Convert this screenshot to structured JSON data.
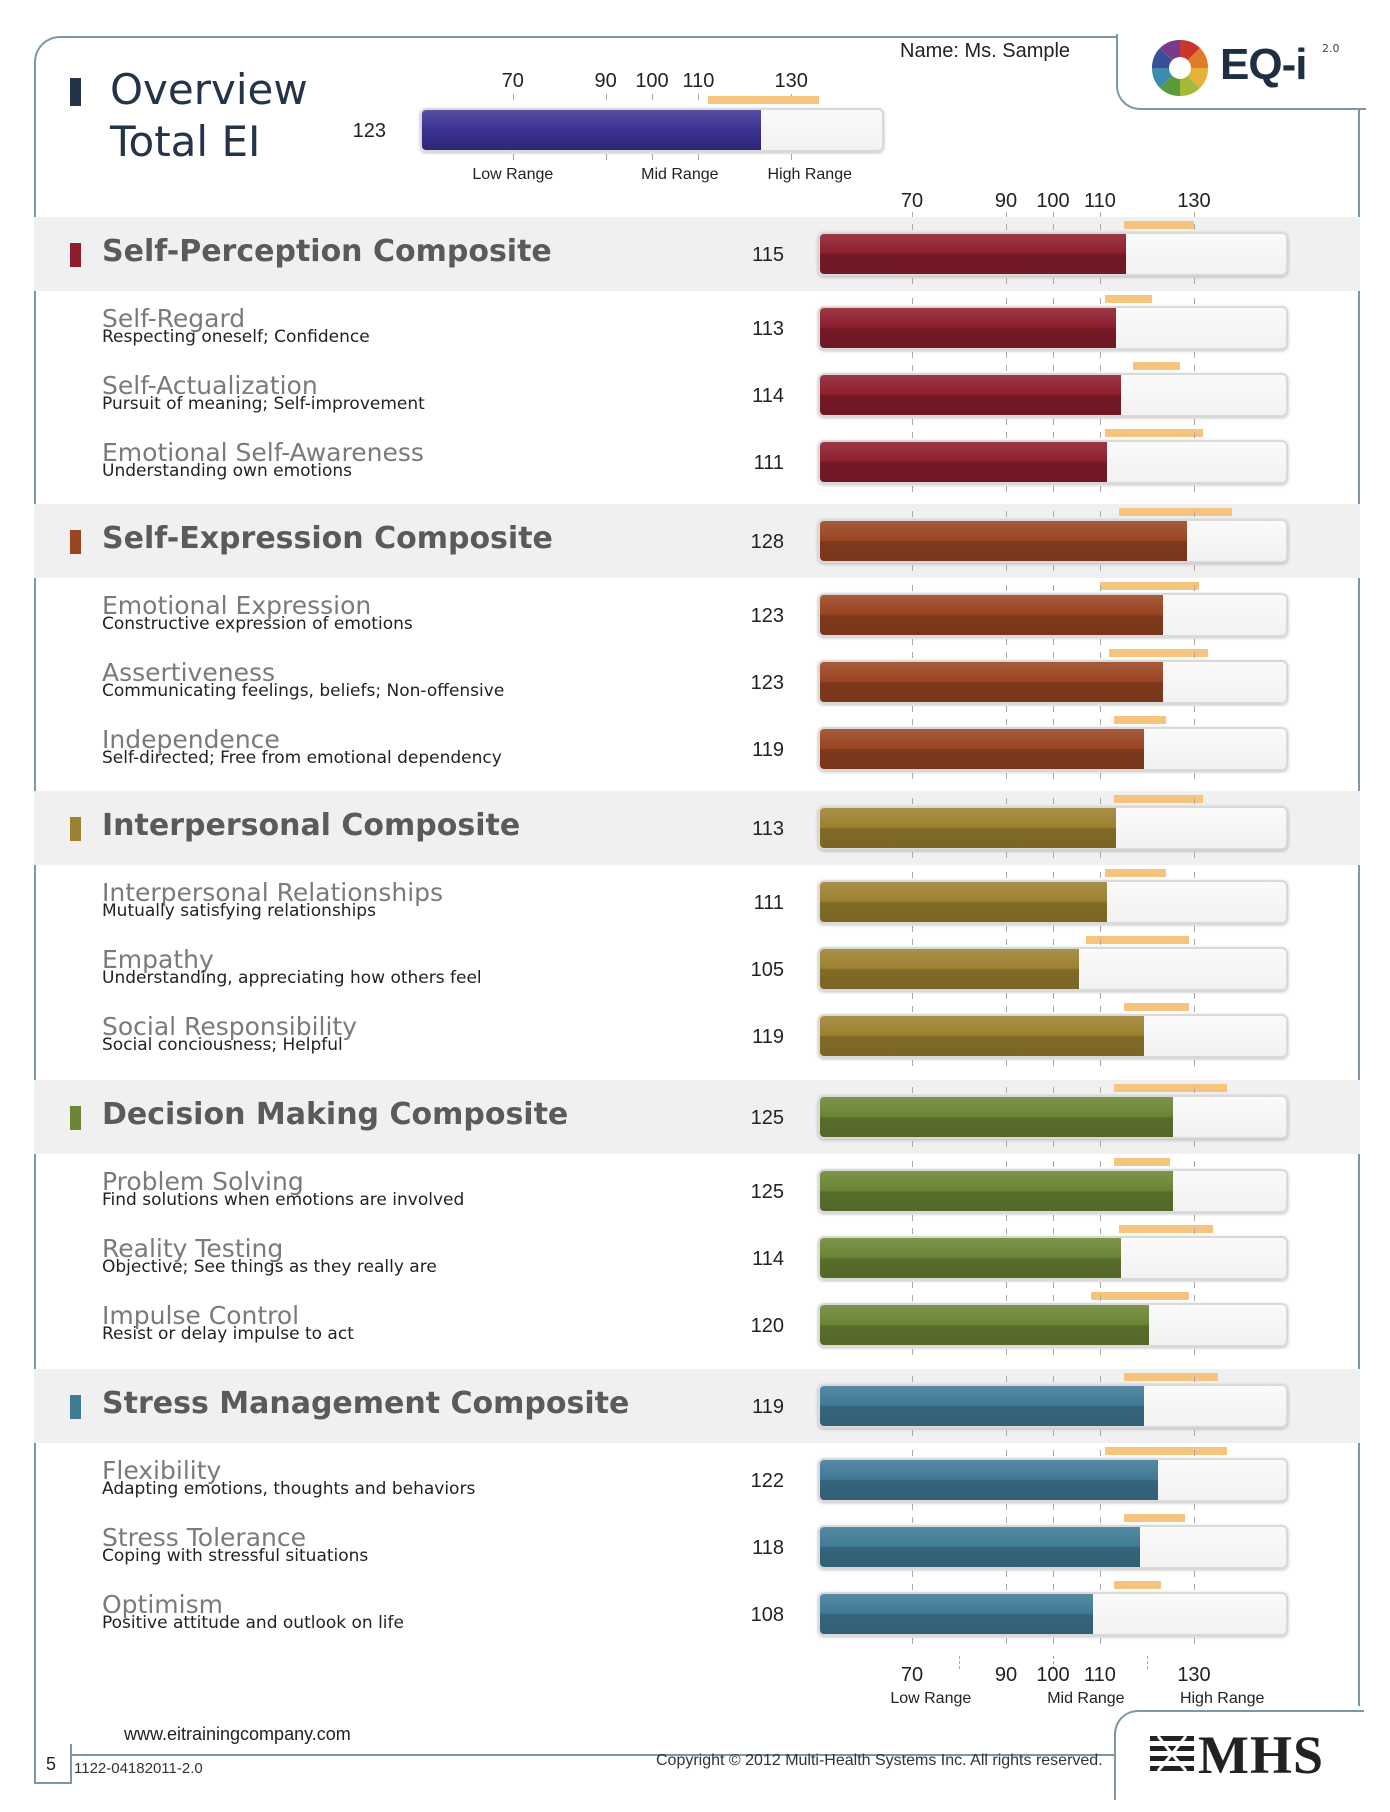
{
  "header": {
    "name_label": "Name: Ms. Sample",
    "logo_text": "EQ-i",
    "logo_version": "2.0"
  },
  "overview": {
    "title_line1": "Overview",
    "title_line2": "Total EI",
    "score": "123",
    "score_value": 123,
    "band": [
      112,
      136
    ],
    "color": "#3a3191"
  },
  "scale": {
    "ticks": [
      "70",
      "90",
      "100",
      "110",
      "130"
    ],
    "tick_values": [
      70,
      90,
      100,
      110,
      130
    ],
    "min": 50,
    "max": 150,
    "ranges": [
      "Low Range",
      "Mid Range",
      "High Range"
    ]
  },
  "composites": [
    {
      "title": "Self-Perception Composite",
      "score": "115",
      "value": 115,
      "band": [
        115,
        130
      ],
      "color": "#8e1e2e",
      "subscales": [
        {
          "title": "Self-Regard",
          "desc": "Respecting oneself; Confidence",
          "score": "113",
          "value": 113,
          "band": [
            111,
            121
          ]
        },
        {
          "title": "Self-Actualization",
          "desc": "Pursuit of meaning; Self-improvement",
          "score": "114",
          "value": 114,
          "band": [
            117,
            127
          ]
        },
        {
          "title": "Emotional Self-Awareness",
          "desc": "Understanding own emotions",
          "score": "111",
          "value": 111,
          "band": [
            111,
            132
          ]
        }
      ]
    },
    {
      "title": "Self-Expression Composite",
      "score": "128",
      "value": 128,
      "band": [
        114,
        138
      ],
      "color": "#9a4521",
      "subscales": [
        {
          "title": "Emotional Expression",
          "desc": "Constructive expression of emotions",
          "score": "123",
          "value": 123,
          "band": [
            110,
            131
          ]
        },
        {
          "title": "Assertiveness",
          "desc": "Communicating feelings, beliefs; Non-offensive",
          "score": "123",
          "value": 123,
          "band": [
            112,
            133
          ]
        },
        {
          "title": "Independence",
          "desc": "Self-directed; Free from emotional dependency",
          "score": "119",
          "value": 119,
          "band": [
            113,
            124
          ]
        }
      ]
    },
    {
      "title": "Interpersonal Composite",
      "score": "113",
      "value": 113,
      "band": [
        113,
        132
      ],
      "color": "#9c8130",
      "subscales": [
        {
          "title": "Interpersonal Relationships",
          "desc": "Mutually satisfying relationships",
          "score": "111",
          "value": 111,
          "band": [
            111,
            124
          ]
        },
        {
          "title": "Empathy",
          "desc": "Understanding, appreciating how others feel",
          "score": "105",
          "value": 105,
          "band": [
            107,
            129
          ]
        },
        {
          "title": "Social Responsibility",
          "desc": "Social conciousness; Helpful",
          "score": "119",
          "value": 119,
          "band": [
            115,
            129
          ]
        }
      ]
    },
    {
      "title": "Decision Making Composite",
      "score": "125",
      "value": 125,
      "band": [
        113,
        137
      ],
      "color": "#6b8535",
      "subscales": [
        {
          "title": "Problem Solving",
          "desc": "Find solutions when emotions are involved",
          "score": "125",
          "value": 125,
          "band": [
            113,
            125
          ]
        },
        {
          "title": "Reality Testing",
          "desc": "Objective; See things as they really are",
          "score": "114",
          "value": 114,
          "band": [
            114,
            134
          ]
        },
        {
          "title": "Impulse Control",
          "desc": "Resist or delay impulse to act",
          "score": "120",
          "value": 120,
          "band": [
            108,
            129
          ]
        }
      ]
    },
    {
      "title": "Stress Management Composite",
      "score": "119",
      "value": 119,
      "band": [
        115,
        135
      ],
      "color": "#3f7a96",
      "subscales": [
        {
          "title": "Flexibility",
          "desc": "Adapting emotions, thoughts and behaviors",
          "score": "122",
          "value": 122,
          "band": [
            111,
            137
          ]
        },
        {
          "title": "Stress Tolerance",
          "desc": "Coping with stressful situations",
          "score": "118",
          "value": 118,
          "band": [
            115,
            128
          ]
        },
        {
          "title": "Optimism",
          "desc": "Positive attitude and outlook on life",
          "score": "108",
          "value": 108,
          "band": [
            113,
            123
          ]
        }
      ]
    }
  ],
  "footer": {
    "url": "www.eitrainingcompany.com",
    "page": "5",
    "code": "1122-04182011-2.0",
    "copyright": "Copyright © 2012 Multi-Health Systems Inc. All rights reserved.",
    "publisher": "MHS"
  }
}
